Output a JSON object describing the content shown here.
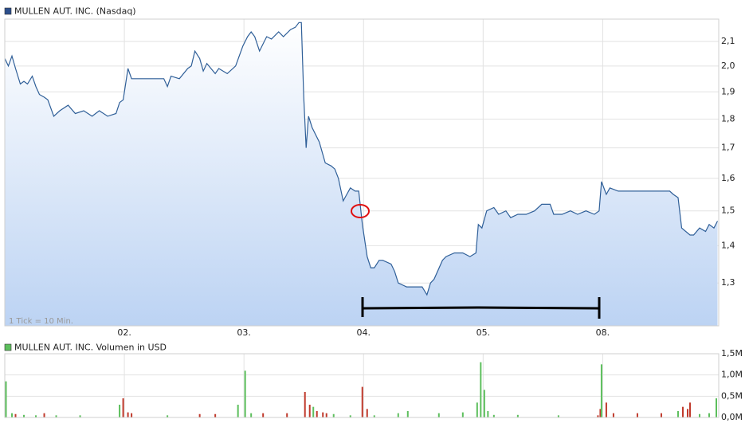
{
  "chart_data": [
    {
      "type": "line",
      "title": "MULLEN AUT. INC. (Nasdaq)",
      "note": "1 Tick = 10 Min.",
      "log": true,
      "grid": true,
      "color": "#2f5f98",
      "legend_color": "#2c4f8c",
      "xlim": [
        0,
        5.97
      ],
      "xticks": [
        {
          "value": 1,
          "label": "02."
        },
        {
          "value": 2,
          "label": "03."
        },
        {
          "value": 3,
          "label": "04."
        },
        {
          "value": 4,
          "label": "05."
        },
        {
          "value": 5,
          "label": "08."
        }
      ],
      "ylim": [
        1.194,
        2.195
      ],
      "yticks": [
        {
          "value": 1.3,
          "label": "1,3"
        },
        {
          "value": 1.4,
          "label": "1,4"
        },
        {
          "value": 1.5,
          "label": "1,5"
        },
        {
          "value": 1.6,
          "label": "1,6"
        },
        {
          "value": 1.7,
          "label": "1,7"
        },
        {
          "value": 1.8,
          "label": "1,8"
        },
        {
          "value": 1.9,
          "label": "1,9"
        },
        {
          "value": 2.0,
          "label": "2,0"
        },
        {
          "value": 2.1,
          "label": "2,1"
        }
      ],
      "x": [
        0,
        0.03,
        0.06,
        0.09,
        0.13,
        0.16,
        0.19,
        0.23,
        0.26,
        0.29,
        0.33,
        0.36,
        0.41,
        0.46,
        0.53,
        0.59,
        0.66,
        0.73,
        0.79,
        0.86,
        0.93,
        0.96,
        0.99,
        1.03,
        1.06,
        1.13,
        1.23,
        1.33,
        1.36,
        1.39,
        1.46,
        1.53,
        1.56,
        1.59,
        1.63,
        1.66,
        1.69,
        1.76,
        1.79,
        1.86,
        1.93,
        1.99,
        2.03,
        2.06,
        2.09,
        2.13,
        2.16,
        2.19,
        2.23,
        2.29,
        2.33,
        2.39,
        2.43,
        2.46,
        2.48,
        2.5,
        2.52,
        2.54,
        2.57,
        2.63,
        2.68,
        2.73,
        2.76,
        2.79,
        2.83,
        2.86,
        2.89,
        2.93,
        2.96,
        2.99,
        3.03,
        3.06,
        3.09,
        3.13,
        3.16,
        3.23,
        3.26,
        3.29,
        3.36,
        3.43,
        3.49,
        3.53,
        3.56,
        3.59,
        3.66,
        3.69,
        3.76,
        3.83,
        3.89,
        3.94,
        3.96,
        3.99,
        4.03,
        4.09,
        4.13,
        4.19,
        4.23,
        4.29,
        4.36,
        4.43,
        4.49,
        4.56,
        4.59,
        4.66,
        4.73,
        4.79,
        4.86,
        4.93,
        4.97,
        4.99,
        5.03,
        5.06,
        5.13,
        5.19,
        5.26,
        5.33,
        5.39,
        5.46,
        5.53,
        5.56,
        5.59,
        5.63,
        5.66,
        5.73,
        5.76,
        5.81,
        5.86,
        5.89,
        5.93,
        5.96
      ],
      "values": [
        2.03,
        2.0,
        2.04,
        1.99,
        1.93,
        1.94,
        1.93,
        1.96,
        1.92,
        1.89,
        1.88,
        1.87,
        1.81,
        1.83,
        1.85,
        1.82,
        1.83,
        1.81,
        1.83,
        1.81,
        1.82,
        1.86,
        1.87,
        1.99,
        1.95,
        1.95,
        1.95,
        1.95,
        1.92,
        1.96,
        1.95,
        1.99,
        2.0,
        2.06,
        2.03,
        1.98,
        2.01,
        1.97,
        1.99,
        1.97,
        2.0,
        2.08,
        2.12,
        2.14,
        2.12,
        2.06,
        2.09,
        2.12,
        2.11,
        2.14,
        2.12,
        2.15,
        2.16,
        2.18,
        2.18,
        1.88,
        1.7,
        1.81,
        1.77,
        1.72,
        1.65,
        1.64,
        1.63,
        1.6,
        1.53,
        1.55,
        1.57,
        1.56,
        1.56,
        1.46,
        1.37,
        1.34,
        1.34,
        1.36,
        1.36,
        1.35,
        1.33,
        1.3,
        1.29,
        1.29,
        1.29,
        1.27,
        1.3,
        1.31,
        1.36,
        1.37,
        1.38,
        1.38,
        1.37,
        1.38,
        1.46,
        1.45,
        1.5,
        1.51,
        1.49,
        1.5,
        1.48,
        1.49,
        1.49,
        1.5,
        1.52,
        1.52,
        1.49,
        1.49,
        1.5,
        1.49,
        1.5,
        1.49,
        1.5,
        1.59,
        1.55,
        1.57,
        1.56,
        1.56,
        1.56,
        1.56,
        1.56,
        1.56,
        1.56,
        1.56,
        1.55,
        1.54,
        1.45,
        1.43,
        1.43,
        1.45,
        1.44,
        1.46,
        1.45,
        1.47
      ]
    },
    {
      "type": "bar",
      "title": "MULLEN AUT. INC. Volumen in USD",
      "grid": true,
      "legend_color": "#5cbf5c",
      "xlim": [
        0,
        5.97
      ],
      "xticks": [
        1,
        2,
        3,
        4,
        5
      ],
      "ylim": [
        0,
        1.5
      ],
      "yticks": [
        {
          "value": 0,
          "label": "0,0M"
        },
        {
          "value": 0.5,
          "label": "0,5M"
        },
        {
          "value": 1.0,
          "label": "1,0M"
        },
        {
          "value": 1.5,
          "label": "1,5M"
        }
      ],
      "x": [
        0.01,
        0.06,
        0.09,
        0.16,
        0.26,
        0.33,
        0.43,
        0.63,
        0.96,
        0.99,
        1.03,
        1.06,
        1.36,
        1.63,
        1.76,
        1.95,
        2.01,
        2.06,
        2.16,
        2.36,
        2.51,
        2.55,
        2.58,
        2.61,
        2.66,
        2.69,
        2.75,
        2.89,
        2.99,
        3.03,
        3.09,
        3.29,
        3.37,
        3.63,
        3.83,
        3.95,
        3.98,
        4.01,
        4.04,
        4.09,
        4.29,
        4.63,
        4.96,
        4.98,
        4.99,
        5.03,
        5.09,
        5.29,
        5.49,
        5.63,
        5.67,
        5.71,
        5.73,
        5.81,
        5.89,
        5.95
      ],
      "values": [
        0.85,
        0.1,
        0.08,
        0.06,
        0.05,
        0.1,
        0.05,
        0.05,
        0.3,
        0.45,
        0.12,
        0.1,
        0.05,
        0.08,
        0.08,
        0.3,
        1.1,
        0.1,
        0.1,
        0.1,
        0.6,
        0.3,
        0.25,
        0.15,
        0.12,
        0.1,
        0.08,
        0.05,
        0.72,
        0.2,
        0.05,
        0.1,
        0.15,
        0.1,
        0.12,
        0.35,
        1.3,
        0.65,
        0.15,
        0.06,
        0.06,
        0.05,
        0.05,
        0.2,
        1.25,
        0.35,
        0.1,
        0.1,
        0.1,
        0.15,
        0.25,
        0.2,
        0.35,
        0.08,
        0.1,
        0.45
      ],
      "colors": [
        "#5cbf5c",
        "#5cbf5c",
        "#c0392b",
        "#5cbf5c",
        "#5cbf5c",
        "#c0392b",
        "#5cbf5c",
        "#5cbf5c",
        "#5cbf5c",
        "#c0392b",
        "#c0392b",
        "#c0392b",
        "#5cbf5c",
        "#c0392b",
        "#c0392b",
        "#5cbf5c",
        "#5cbf5c",
        "#5cbf5c",
        "#c0392b",
        "#c0392b",
        "#c0392b",
        "#c0392b",
        "#5cbf5c",
        "#c0392b",
        "#c0392b",
        "#c0392b",
        "#5cbf5c",
        "#5cbf5c",
        "#c0392b",
        "#c0392b",
        "#5cbf5c",
        "#5cbf5c",
        "#5cbf5c",
        "#5cbf5c",
        "#5cbf5c",
        "#5cbf5c",
        "#5cbf5c",
        "#5cbf5c",
        "#5cbf5c",
        "#5cbf5c",
        "#5cbf5c",
        "#5cbf5c",
        "#c0392b",
        "#c0392b",
        "#5cbf5c",
        "#c0392b",
        "#c0392b",
        "#c0392b",
        "#c0392b",
        "#5cbf5c",
        "#c0392b",
        "#c0392b",
        "#c0392b",
        "#5cbf5c",
        "#5cbf5c",
        "#5cbf5c"
      ]
    }
  ]
}
